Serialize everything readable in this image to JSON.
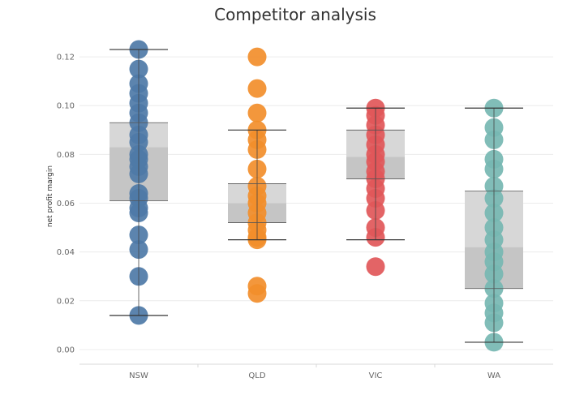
{
  "chart_data": {
    "type": "box-plot-with-points",
    "title": "Competitor analysis",
    "xlabel": "",
    "ylabel": "net profit margin",
    "ylim": [
      -0.006,
      0.13
    ],
    "yticks": [
      0.0,
      0.02,
      0.04,
      0.06,
      0.08,
      0.1,
      0.12
    ],
    "ytick_labels": [
      "0.00",
      "0.02",
      "0.04",
      "0.06",
      "0.08",
      "0.10",
      "0.12"
    ],
    "categories": [
      "NSW",
      "QLD",
      "VIC",
      "WA"
    ],
    "grid": "horizontal",
    "legend": "none",
    "series": [
      {
        "category": "NSW",
        "color": "#4e79a7",
        "whisker_low": 0.014,
        "q1": 0.061,
        "median": 0.083,
        "q3": 0.093,
        "whisker_high": 0.123,
        "points": [
          0.123,
          0.115,
          0.109,
          0.105,
          0.101,
          0.097,
          0.093,
          0.088,
          0.085,
          0.08,
          0.078,
          0.075,
          0.072,
          0.064,
          0.062,
          0.058,
          0.056,
          0.047,
          0.041,
          0.03,
          0.014
        ]
      },
      {
        "category": "QLD",
        "color": "#f28e2b",
        "whisker_low": 0.045,
        "q1": 0.052,
        "median": 0.06,
        "q3": 0.068,
        "whisker_high": 0.09,
        "points": [
          0.12,
          0.107,
          0.097,
          0.09,
          0.086,
          0.082,
          0.074,
          0.067,
          0.063,
          0.06,
          0.056,
          0.052,
          0.049,
          0.046,
          0.045,
          0.026,
          0.023
        ]
      },
      {
        "category": "VIC",
        "color": "#e15759",
        "whisker_low": 0.045,
        "q1": 0.07,
        "median": 0.079,
        "q3": 0.09,
        "whisker_high": 0.099,
        "points": [
          0.099,
          0.096,
          0.092,
          0.088,
          0.084,
          0.08,
          0.077,
          0.073,
          0.07,
          0.066,
          0.062,
          0.057,
          0.05,
          0.046,
          0.034
        ]
      },
      {
        "category": "WA",
        "color": "#76b7b2",
        "whisker_low": 0.003,
        "q1": 0.025,
        "median": 0.042,
        "q3": 0.065,
        "whisker_high": 0.099,
        "points": [
          0.099,
          0.091,
          0.086,
          0.078,
          0.074,
          0.067,
          0.062,
          0.056,
          0.05,
          0.045,
          0.04,
          0.036,
          0.031,
          0.025,
          0.019,
          0.015,
          0.011,
          0.003
        ]
      }
    ]
  }
}
